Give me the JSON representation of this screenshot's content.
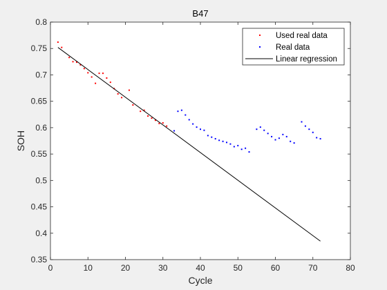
{
  "chart_data": {
    "type": "scatter",
    "title": "B47",
    "xlabel": "Cycle",
    "ylabel": "SOH",
    "xlim": [
      0,
      80
    ],
    "ylim": [
      0.35,
      0.8
    ],
    "x_ticks": [
      0,
      10,
      20,
      30,
      40,
      50,
      60,
      70,
      80
    ],
    "x_tick_labels": [
      "0",
      "10",
      "20",
      "30",
      "40",
      "50",
      "60",
      "70",
      "80"
    ],
    "y_ticks": [
      0.35,
      0.4,
      0.45,
      0.5,
      0.55,
      0.6,
      0.65,
      0.7,
      0.75,
      0.8
    ],
    "y_tick_labels": [
      "0.35",
      "0.4",
      "0.45",
      "0.5",
      "0.55",
      "0.6",
      "0.65",
      "0.7",
      "0.75",
      "0.8"
    ],
    "grid": false,
    "legend_position": "top-right",
    "series": [
      {
        "name": "Used real data",
        "kind": "scatter",
        "color": "#ff0000",
        "points": [
          [
            2,
            0.762
          ],
          [
            3,
            0.752
          ],
          [
            5,
            0.733
          ],
          [
            6,
            0.725
          ],
          [
            7,
            0.724
          ],
          [
            8,
            0.719
          ],
          [
            9,
            0.712
          ],
          [
            10,
            0.704
          ],
          [
            11,
            0.696
          ],
          [
            12,
            0.684
          ],
          [
            13,
            0.703
          ],
          [
            14,
            0.703
          ],
          [
            15,
            0.694
          ],
          [
            16,
            0.686
          ],
          [
            17,
            0.674
          ],
          [
            18,
            0.664
          ],
          [
            19,
            0.657
          ],
          [
            21,
            0.671
          ],
          [
            22,
            0.643
          ],
          [
            24,
            0.631
          ],
          [
            25,
            0.633
          ],
          [
            26,
            0.622
          ],
          [
            27,
            0.618
          ],
          [
            28,
            0.614
          ],
          [
            29,
            0.608
          ],
          [
            30,
            0.609
          ],
          [
            31,
            0.603
          ]
        ]
      },
      {
        "name": "Real data",
        "kind": "scatter",
        "color": "#0000ff",
        "points": [
          [
            33,
            0.594
          ],
          [
            34,
            0.631
          ],
          [
            35,
            0.633
          ],
          [
            36,
            0.624
          ],
          [
            37,
            0.615
          ],
          [
            38,
            0.607
          ],
          [
            39,
            0.601
          ],
          [
            40,
            0.597
          ],
          [
            41,
            0.595
          ],
          [
            42,
            0.585
          ],
          [
            43,
            0.582
          ],
          [
            44,
            0.579
          ],
          [
            45,
            0.576
          ],
          [
            46,
            0.574
          ],
          [
            47,
            0.572
          ],
          [
            48,
            0.569
          ],
          [
            49,
            0.564
          ],
          [
            50,
            0.566
          ],
          [
            51,
            0.559
          ],
          [
            52,
            0.561
          ],
          [
            53,
            0.554
          ],
          [
            55,
            0.597
          ],
          [
            56,
            0.601
          ],
          [
            57,
            0.595
          ],
          [
            58,
            0.589
          ],
          [
            59,
            0.583
          ],
          [
            60,
            0.577
          ],
          [
            61,
            0.58
          ],
          [
            62,
            0.587
          ],
          [
            63,
            0.583
          ],
          [
            64,
            0.574
          ],
          [
            65,
            0.571
          ],
          [
            67,
            0.611
          ],
          [
            68,
            0.603
          ],
          [
            69,
            0.597
          ],
          [
            70,
            0.591
          ],
          [
            71,
            0.581
          ],
          [
            72,
            0.579
          ]
        ]
      },
      {
        "name": "Linear regression",
        "kind": "line",
        "color": "#000000",
        "points": [
          [
            2,
            0.752
          ],
          [
            72,
            0.385
          ]
        ]
      }
    ]
  }
}
